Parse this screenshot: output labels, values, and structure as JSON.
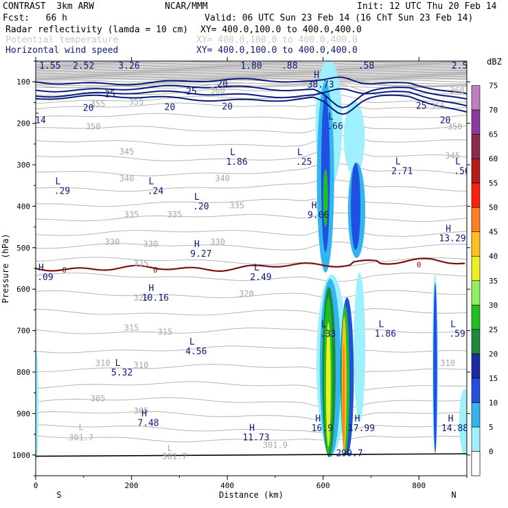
{
  "header": {
    "model": "CONTRAST  3km ARW",
    "center": "NCAR/MMM",
    "init": "Init: 12 UTC Thu 20 Feb 14",
    "fcst": "Fcst:   66 h",
    "valid": "Valid: 06 UTC Sun 23 Feb 14 (16 ChT Sun 23 Feb 14)",
    "field1": "Radar reflectivity (lamda = 10 cm)",
    "field1_xy": "XY= 400.0,100.0 to 400.0,400.0",
    "field2": "Potential temperature",
    "field2_xy": "XY= 400.0,100.0 to 400.0,400.0",
    "field3": "Horizontal wind speed",
    "field3_xy": "XY= 400.0,100.0 to 400.0,400.0"
  },
  "chart_data": {
    "type": "cross-section",
    "xlabel": "Distance (km)",
    "ylabel": "Pressure (hPa)",
    "x_ticks": [
      "0",
      "200",
      "400",
      "600",
      "800"
    ],
    "y_ticks": [
      "100",
      "200",
      "300",
      "400",
      "500",
      "600",
      "700",
      "800",
      "900",
      "1000"
    ],
    "xlim": [
      0,
      900
    ],
    "ylim": [
      1050,
      50
    ],
    "end_labels": {
      "left": "S",
      "right": "N"
    },
    "colorbar": {
      "unit": "dBZ",
      "levels": [
        0,
        5,
        10,
        15,
        20,
        25,
        30,
        35,
        40,
        45,
        50,
        55,
        60,
        65,
        70,
        75
      ],
      "colors": [
        "#ffffff",
        "#9ff0ff",
        "#33b5f0",
        "#2050e0",
        "#1d2aa8",
        "#1c8a3a",
        "#20c020",
        "#90f060",
        "#f0f020",
        "#ffc020",
        "#ff8020",
        "#ff2010",
        "#b81818",
        "#902850",
        "#8a3aa0",
        "#c080c0"
      ]
    },
    "theta_labels": [
      {
        "text": "355",
        "x": 130,
        "p": 160
      },
      {
        "text": "355",
        "x": 210,
        "p": 155
      },
      {
        "text": "350",
        "x": 120,
        "p": 215
      },
      {
        "text": "345",
        "x": 190,
        "p": 275
      },
      {
        "text": "340",
        "x": 190,
        "p": 340
      },
      {
        "text": "340",
        "x": 390,
        "p": 340
      },
      {
        "text": "335",
        "x": 200,
        "p": 427
      },
      {
        "text": "335",
        "x": 290,
        "p": 427
      },
      {
        "text": "335",
        "x": 420,
        "p": 405
      },
      {
        "text": "330",
        "x": 160,
        "p": 493
      },
      {
        "text": "330",
        "x": 240,
        "p": 498
      },
      {
        "text": "330",
        "x": 380,
        "p": 493
      },
      {
        "text": "325",
        "x": 220,
        "p": 545
      },
      {
        "text": "320",
        "x": 220,
        "p": 628
      },
      {
        "text": "320",
        "x": 440,
        "p": 618
      },
      {
        "text": "315",
        "x": 200,
        "p": 700
      },
      {
        "text": "315",
        "x": 270,
        "p": 710
      },
      {
        "text": "310",
        "x": 140,
        "p": 785
      },
      {
        "text": "310",
        "x": 220,
        "p": 790
      },
      {
        "text": "305",
        "x": 130,
        "p": 870
      },
      {
        "text": "305",
        "x": 220,
        "p": 900
      },
      {
        "text": "360",
        "x": 380,
        "p": 128
      },
      {
        "text": "360",
        "x": 880,
        "p": 128
      },
      {
        "text": "355",
        "x": 840,
        "p": 165
      },
      {
        "text": "350",
        "x": 875,
        "p": 215
      },
      {
        "text": "345",
        "x": 870,
        "p": 285
      },
      {
        "text": "310",
        "x": 860,
        "p": 785
      },
      {
        "text": "301.7",
        "x": 95,
        "p": 965
      },
      {
        "text": "301.7",
        "x": 290,
        "p": 1010
      },
      {
        "text": "301.9",
        "x": 500,
        "p": 983
      },
      {
        "text": "L",
        "x": 95,
        "p": 940
      },
      {
        "text": "L",
        "x": 280,
        "p": 990
      }
    ],
    "wind_labels": [
      {
        "text": "25",
        "x": 155,
        "p": 137
      },
      {
        "text": "25",
        "x": 325,
        "p": 130
      },
      {
        "text": "20",
        "x": 110,
        "p": 170
      },
      {
        "text": "20",
        "x": 280,
        "p": 168
      },
      {
        "text": "20",
        "x": 400,
        "p": 167
      },
      {
        "text": "20",
        "x": 390,
        "p": 112
      },
      {
        "text": "25",
        "x": 805,
        "p": 165
      },
      {
        "text": "20",
        "x": 855,
        "p": 200
      }
    ],
    "extrema_labels": [
      {
        "mark": "L",
        "value": "1.55",
        "x": 30,
        "p": 68
      },
      {
        "mark": "L",
        "value": "2.52",
        "x": 100,
        "p": 68
      },
      {
        "mark": "L",
        "value": "3.26",
        "x": 195,
        "p": 68
      },
      {
        "mark": "L",
        "value": "1.80",
        "x": 450,
        "p": 68
      },
      {
        "mark": "L",
        "value": ".88",
        "x": 530,
        "p": 68
      },
      {
        "mark": "L",
        "value": ".58",
        "x": 690,
        "p": 68
      },
      {
        "mark": "L",
        "value": "2.5",
        "x": 885,
        "p": 68
      },
      {
        "mark": "H",
        "value": "38.73",
        "x": 595,
        "p": 114
      },
      {
        "mark": "L",
        "value": "14",
        "x": 10,
        "p": 200
      },
      {
        "mark": "L",
        "value": ".66",
        "x": 625,
        "p": 214
      },
      {
        "mark": "L",
        "value": "1.86",
        "x": 420,
        "p": 300
      },
      {
        "mark": "L",
        "value": ".25",
        "x": 560,
        "p": 300
      },
      {
        "mark": "L",
        "value": "2.71",
        "x": 765,
        "p": 322
      },
      {
        "mark": "L",
        "value": ".56",
        "x": 890,
        "p": 322
      },
      {
        "mark": "L",
        "value": ".29",
        "x": 55,
        "p": 370
      },
      {
        "mark": "L",
        "value": ".24",
        "x": 250,
        "p": 370
      },
      {
        "mark": "L",
        "value": ".20",
        "x": 345,
        "p": 408
      },
      {
        "mark": "H",
        "value": "9.06",
        "x": 590,
        "p": 428
      },
      {
        "mark": "H",
        "value": "13.29",
        "x": 870,
        "p": 485
      },
      {
        "mark": "H",
        "value": "9.27",
        "x": 345,
        "p": 522
      },
      {
        "mark": "L",
        "value": "2.49",
        "x": 470,
        "p": 578
      },
      {
        "mark": "H",
        "value": ".09",
        "x": 20,
        "p": 578
      },
      {
        "mark": "H",
        "value": "10.16",
        "x": 250,
        "p": 628
      },
      {
        "mark": "L",
        "value": ".33",
        "x": 610,
        "p": 715
      },
      {
        "mark": "L",
        "value": "1.86",
        "x": 730,
        "p": 715
      },
      {
        "mark": "L",
        "value": ".59",
        "x": 880,
        "p": 715
      },
      {
        "mark": "L",
        "value": "4.56",
        "x": 335,
        "p": 757
      },
      {
        "mark": "L",
        "value": "5.32",
        "x": 180,
        "p": 808
      },
      {
        "mark": "H",
        "value": "7.48",
        "x": 235,
        "p": 930
      },
      {
        "mark": "H",
        "value": "11.73",
        "x": 460,
        "p": 965
      },
      {
        "mark": "H",
        "value": "16.9",
        "x": 598,
        "p": 942
      },
      {
        "mark": "H",
        "value": "17.99",
        "x": 680,
        "p": 942
      },
      {
        "mark": "H",
        "value": "14.88",
        "x": 875,
        "p": 942
      },
      {
        "mark": "",
        "value": "299.7",
        "x": 655,
        "p": 1003
      }
    ],
    "zero_isotherm_labels": [
      {
        "text": "0",
        "x": 60,
        "p": 553
      },
      {
        "text": "0",
        "x": 250,
        "p": 553
      },
      {
        "text": "0",
        "x": 800,
        "p": 541
      }
    ],
    "legend": "right colorbar"
  }
}
